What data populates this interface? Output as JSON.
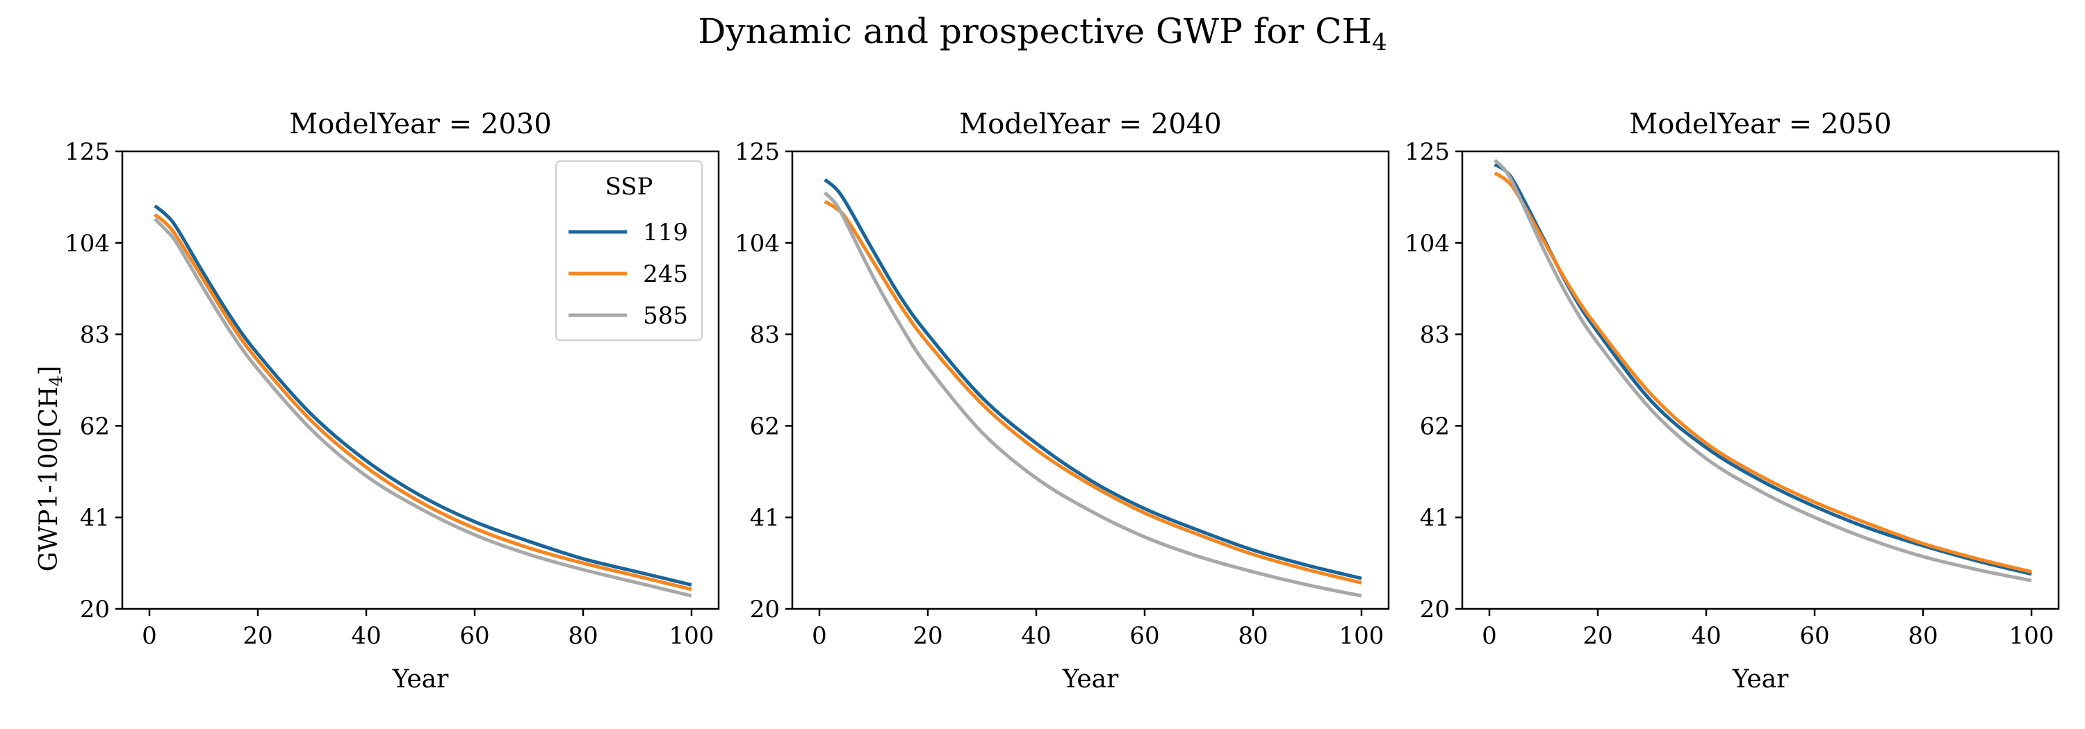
{
  "figure": {
    "suptitle": "Dynamic and prospective GWP for CH",
    "suptitle_sub": "4"
  },
  "axes_common": {
    "xlabel": "Year",
    "ylabel_main": "GWP1-100[CH",
    "ylabel_sub": "4",
    "ylabel_tail": "]",
    "xlim": [
      -5,
      105
    ],
    "ylim": [
      20,
      125
    ],
    "xticks": [
      0,
      20,
      40,
      60,
      80,
      100
    ],
    "yticks": [
      20,
      41,
      62,
      83,
      104,
      125
    ]
  },
  "legend": {
    "title": "SSP",
    "placement": "top-right of first panel",
    "entries": [
      "119",
      "245",
      "585"
    ]
  },
  "colors": {
    "119": "#1a6599",
    "245": "#f5861f",
    "585": "#a8a8a8"
  },
  "chart_data": [
    {
      "type": "line",
      "title": "ModelYear = 2030",
      "xlabel": "Year",
      "ylabel": "GWP1-100[CH4]",
      "xlim": [
        -5,
        105
      ],
      "ylim": [
        20,
        125
      ],
      "x": [
        1,
        3,
        5,
        10,
        15,
        20,
        30,
        40,
        50,
        60,
        70,
        80,
        90,
        100
      ],
      "series": [
        {
          "name": "119",
          "values": [
            112.5,
            110.5,
            107.5,
            97.0,
            87.0,
            78.5,
            64.5,
            54.0,
            46.0,
            40.0,
            35.5,
            31.5,
            28.5,
            25.5
          ]
        },
        {
          "name": "245",
          "values": [
            110.5,
            108.5,
            105.5,
            95.5,
            85.5,
            77.0,
            63.0,
            52.5,
            44.5,
            38.5,
            34.0,
            30.5,
            27.5,
            24.5
          ]
        },
        {
          "name": "585",
          "values": [
            109.5,
            107.0,
            104.0,
            93.5,
            83.5,
            75.0,
            61.0,
            50.5,
            43.0,
            37.0,
            32.5,
            29.0,
            26.0,
            23.0
          ]
        }
      ]
    },
    {
      "type": "line",
      "title": "ModelYear = 2040",
      "xlabel": "Year",
      "xlim": [
        -5,
        105
      ],
      "ylim": [
        20,
        125
      ],
      "x": [
        1,
        3,
        5,
        10,
        15,
        20,
        30,
        40,
        50,
        60,
        70,
        80,
        90,
        100
      ],
      "series": [
        {
          "name": "119",
          "values": [
            118.5,
            116.5,
            113.0,
            102.0,
            91.5,
            83.0,
            68.5,
            58.0,
            49.5,
            43.0,
            38.0,
            33.5,
            30.0,
            27.0
          ]
        },
        {
          "name": "245",
          "values": [
            113.5,
            112.0,
            109.5,
            99.5,
            89.5,
            81.0,
            67.0,
            56.5,
            48.5,
            42.0,
            37.0,
            32.5,
            29.0,
            26.0
          ]
        },
        {
          "name": "585",
          "values": [
            115.5,
            113.0,
            108.5,
            96.0,
            85.0,
            75.5,
            60.5,
            50.0,
            42.5,
            36.5,
            32.0,
            28.5,
            25.5,
            23.0
          ]
        }
      ]
    },
    {
      "type": "line",
      "title": "ModelYear = 2050",
      "xlabel": "Year",
      "xlim": [
        -5,
        105
      ],
      "ylim": [
        20,
        125
      ],
      "x": [
        1,
        3,
        5,
        10,
        15,
        20,
        30,
        40,
        50,
        60,
        70,
        80,
        90,
        100
      ],
      "series": [
        {
          "name": "119",
          "values": [
            122.0,
            120.5,
            117.0,
            105.0,
            93.0,
            83.5,
            67.5,
            57.0,
            49.5,
            43.5,
            38.5,
            34.5,
            31.0,
            28.0
          ]
        },
        {
          "name": "245",
          "values": [
            120.0,
            118.5,
            115.5,
            104.5,
            93.5,
            84.5,
            69.0,
            58.0,
            50.5,
            44.5,
            39.5,
            35.0,
            31.5,
            28.5
          ]
        },
        {
          "name": "585",
          "values": [
            123.0,
            120.5,
            116.0,
            102.5,
            90.5,
            81.0,
            65.5,
            54.5,
            47.0,
            41.0,
            36.0,
            32.0,
            29.0,
            26.5
          ]
        }
      ]
    }
  ]
}
